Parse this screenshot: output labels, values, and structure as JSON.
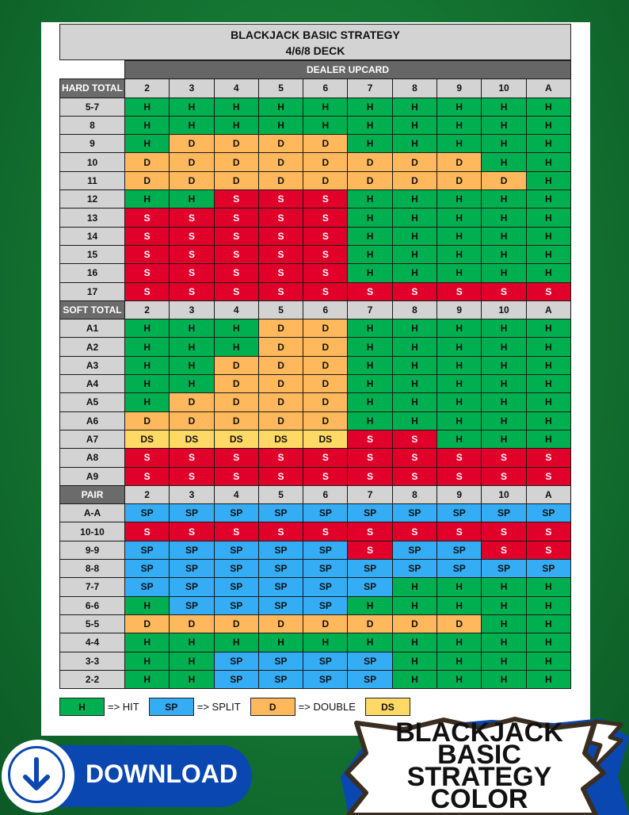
{
  "title": {
    "line1": "BLACKJACK BASIC STRATEGY",
    "line2": "4/6/8 DECK"
  },
  "dealer_upcard_label": "DEALER UPCARD",
  "upcards": [
    "2",
    "3",
    "4",
    "5",
    "6",
    "7",
    "8",
    "9",
    "10",
    "A"
  ],
  "colors": {
    "H": "#00b050",
    "S": "#e0002a",
    "D": "#ffb85c",
    "DS": "#ffd966",
    "SP": "#35adf5"
  },
  "sections": [
    {
      "header": "HARD TOTAL",
      "rows": [
        {
          "label": "5-7",
          "cells": [
            "H",
            "H",
            "H",
            "H",
            "H",
            "H",
            "H",
            "H",
            "H",
            "H"
          ]
        },
        {
          "label": "8",
          "cells": [
            "H",
            "H",
            "H",
            "H",
            "H",
            "H",
            "H",
            "H",
            "H",
            "H"
          ]
        },
        {
          "label": "9",
          "cells": [
            "H",
            "D",
            "D",
            "D",
            "D",
            "H",
            "H",
            "H",
            "H",
            "H"
          ]
        },
        {
          "label": "10",
          "cells": [
            "D",
            "D",
            "D",
            "D",
            "D",
            "D",
            "D",
            "D",
            "H",
            "H"
          ]
        },
        {
          "label": "11",
          "cells": [
            "D",
            "D",
            "D",
            "D",
            "D",
            "D",
            "D",
            "D",
            "D",
            "H"
          ]
        },
        {
          "label": "12",
          "cells": [
            "H",
            "H",
            "S",
            "S",
            "S",
            "H",
            "H",
            "H",
            "H",
            "H"
          ]
        },
        {
          "label": "13",
          "cells": [
            "S",
            "S",
            "S",
            "S",
            "S",
            "H",
            "H",
            "H",
            "H",
            "H"
          ]
        },
        {
          "label": "14",
          "cells": [
            "S",
            "S",
            "S",
            "S",
            "S",
            "H",
            "H",
            "H",
            "H",
            "H"
          ]
        },
        {
          "label": "15",
          "cells": [
            "S",
            "S",
            "S",
            "S",
            "S",
            "H",
            "H",
            "H",
            "H",
            "H"
          ]
        },
        {
          "label": "16",
          "cells": [
            "S",
            "S",
            "S",
            "S",
            "S",
            "H",
            "H",
            "H",
            "H",
            "H"
          ]
        },
        {
          "label": "17",
          "cells": [
            "S",
            "S",
            "S",
            "S",
            "S",
            "S",
            "S",
            "S",
            "S",
            "S"
          ]
        }
      ]
    },
    {
      "header": "SOFT TOTAL",
      "rows": [
        {
          "label": "A1",
          "cells": [
            "H",
            "H",
            "H",
            "D",
            "D",
            "H",
            "H",
            "H",
            "H",
            "H"
          ]
        },
        {
          "label": "A2",
          "cells": [
            "H",
            "H",
            "H",
            "D",
            "D",
            "H",
            "H",
            "H",
            "H",
            "H"
          ]
        },
        {
          "label": "A3",
          "cells": [
            "H",
            "H",
            "D",
            "D",
            "D",
            "H",
            "H",
            "H",
            "H",
            "H"
          ]
        },
        {
          "label": "A4",
          "cells": [
            "H",
            "H",
            "D",
            "D",
            "D",
            "H",
            "H",
            "H",
            "H",
            "H"
          ]
        },
        {
          "label": "A5",
          "cells": [
            "H",
            "D",
            "D",
            "D",
            "D",
            "H",
            "H",
            "H",
            "H",
            "H"
          ]
        },
        {
          "label": "A6",
          "cells": [
            "D",
            "D",
            "D",
            "D",
            "D",
            "H",
            "H",
            "H",
            "H",
            "H"
          ]
        },
        {
          "label": "A7",
          "cells": [
            "DS",
            "DS",
            "DS",
            "DS",
            "DS",
            "S",
            "S",
            "H",
            "H",
            "H"
          ]
        },
        {
          "label": "A8",
          "cells": [
            "S",
            "S",
            "S",
            "S",
            "S",
            "S",
            "S",
            "S",
            "S",
            "S"
          ]
        },
        {
          "label": "A9",
          "cells": [
            "S",
            "S",
            "S",
            "S",
            "S",
            "S",
            "S",
            "S",
            "S",
            "S"
          ]
        }
      ]
    },
    {
      "header": "PAIR",
      "rows": [
        {
          "label": "A-A",
          "cells": [
            "SP",
            "SP",
            "SP",
            "SP",
            "SP",
            "SP",
            "SP",
            "SP",
            "SP",
            "SP"
          ]
        },
        {
          "label": "10-10",
          "cells": [
            "S",
            "S",
            "S",
            "S",
            "S",
            "S",
            "S",
            "S",
            "S",
            "S"
          ]
        },
        {
          "label": "9-9",
          "cells": [
            "SP",
            "SP",
            "SP",
            "SP",
            "SP",
            "S",
            "SP",
            "SP",
            "S",
            "S"
          ]
        },
        {
          "label": "8-8",
          "cells": [
            "SP",
            "SP",
            "SP",
            "SP",
            "SP",
            "SP",
            "SP",
            "SP",
            "SP",
            "SP"
          ]
        },
        {
          "label": "7-7",
          "cells": [
            "SP",
            "SP",
            "SP",
            "SP",
            "SP",
            "SP",
            "H",
            "H",
            "H",
            "H"
          ]
        },
        {
          "label": "6-6",
          "cells": [
            "H",
            "SP",
            "SP",
            "SP",
            "SP",
            "H",
            "H",
            "H",
            "H",
            "H"
          ]
        },
        {
          "label": "5-5",
          "cells": [
            "D",
            "D",
            "D",
            "D",
            "D",
            "D",
            "D",
            "D",
            "H",
            "H"
          ]
        },
        {
          "label": "4-4",
          "cells": [
            "H",
            "H",
            "H",
            "H",
            "H",
            "H",
            "H",
            "H",
            "H",
            "H"
          ]
        },
        {
          "label": "3-3",
          "cells": [
            "H",
            "H",
            "SP",
            "SP",
            "SP",
            "SP",
            "H",
            "H",
            "H",
            "H"
          ]
        },
        {
          "label": "2-2",
          "cells": [
            "H",
            "H",
            "SP",
            "SP",
            "SP",
            "SP",
            "H",
            "H",
            "H",
            "H"
          ]
        }
      ]
    }
  ],
  "legend": [
    {
      "code": "H",
      "text": "=> HIT"
    },
    {
      "code": "SP",
      "text": "=> SPLIT"
    },
    {
      "code": "D",
      "text": "=> DOUBLE"
    },
    {
      "code": "DS",
      "text": ""
    }
  ],
  "badge": {
    "line1": "BLACKJACK",
    "line2": "BASIC",
    "line3": "STRATEGY",
    "line4": "COLOR"
  },
  "download_label": "DOWNLOAD"
}
